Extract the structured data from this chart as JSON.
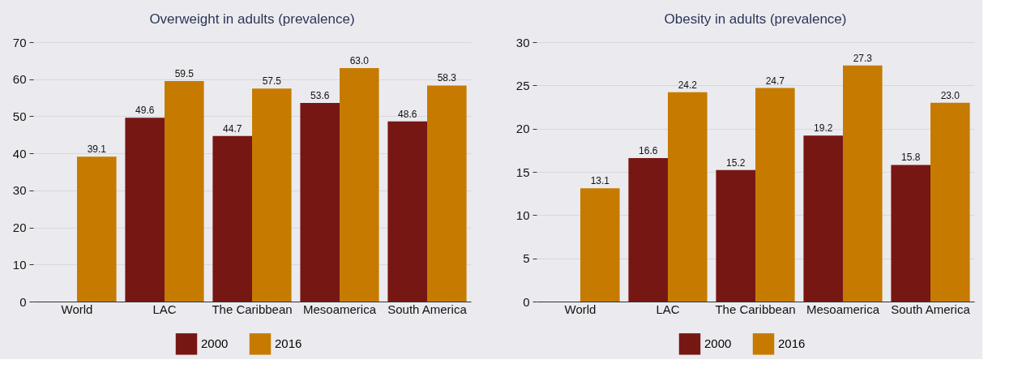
{
  "chart_data": [
    {
      "type": "bar",
      "title": "Overweight in adults (prevalence)",
      "categories": [
        "World",
        "LAC",
        "The Caribbean",
        "Mesoamerica",
        "South America"
      ],
      "series": [
        {
          "name": "2000",
          "color": "#771714",
          "values": [
            null,
            49.6,
            44.7,
            53.6,
            48.6
          ],
          "value_labels": [
            null,
            "49.6",
            "44.7",
            "53.6",
            "48.6"
          ]
        },
        {
          "name": "2016",
          "color": "#c67b00",
          "values": [
            39.1,
            59.5,
            57.5,
            63.0,
            58.3
          ],
          "value_labels": [
            "39.1",
            "59.5",
            "57.5",
            "63.0",
            "58.3"
          ]
        }
      ],
      "ylim": [
        0,
        70
      ],
      "yticks": [
        0,
        10,
        20,
        30,
        40,
        50,
        60,
        70
      ],
      "grid": "y",
      "legend": "bottom"
    },
    {
      "type": "bar",
      "title": "Obesity in adults (prevalence)",
      "categories": [
        "World",
        "LAC",
        "The Caribbean",
        "Mesoamerica",
        "South America"
      ],
      "series": [
        {
          "name": "2000",
          "color": "#771714",
          "values": [
            null,
            16.6,
            15.2,
            19.2,
            15.8
          ],
          "value_labels": [
            null,
            "16.6",
            "15.2",
            "19.2",
            "15.8"
          ]
        },
        {
          "name": "2016",
          "color": "#c67b00",
          "values": [
            13.1,
            24.2,
            24.7,
            27.3,
            23.0
          ],
          "value_labels": [
            "13.1",
            "24.2",
            "24.7",
            "27.3",
            "23.0"
          ]
        }
      ],
      "ylim": [
        0,
        30
      ],
      "yticks": [
        0,
        5,
        10,
        15,
        20,
        25,
        30
      ],
      "grid": "y",
      "legend": "bottom"
    }
  ]
}
